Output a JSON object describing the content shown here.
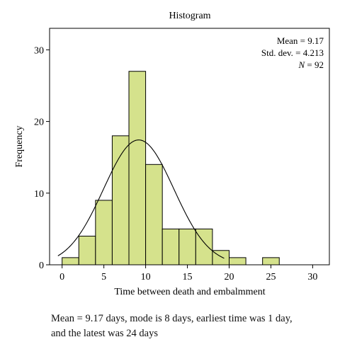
{
  "chart_data": {
    "type": "bar",
    "title": "Histogram",
    "xlabel": "Time between death and embalmment",
    "ylabel": "Frequency",
    "bin_width": 2,
    "bins": [
      {
        "start": 0,
        "end": 2,
        "count": 1
      },
      {
        "start": 2,
        "end": 4,
        "count": 4
      },
      {
        "start": 4,
        "end": 6,
        "count": 9
      },
      {
        "start": 6,
        "end": 8,
        "count": 18
      },
      {
        "start": 8,
        "end": 10,
        "count": 27
      },
      {
        "start": 10,
        "end": 12,
        "count": 14
      },
      {
        "start": 12,
        "end": 14,
        "count": 5
      },
      {
        "start": 14,
        "end": 16,
        "count": 5
      },
      {
        "start": 16,
        "end": 18,
        "count": 5
      },
      {
        "start": 18,
        "end": 20,
        "count": 2
      },
      {
        "start": 20,
        "end": 22,
        "count": 1
      },
      {
        "start": 22,
        "end": 24,
        "count": 0
      },
      {
        "start": 24,
        "end": 26,
        "count": 1
      }
    ],
    "xlim": [
      -1.5,
      32
    ],
    "ylim": [
      0,
      33
    ],
    "xticks": [
      0,
      5,
      10,
      15,
      20,
      25,
      30
    ],
    "yticks": [
      0,
      10,
      20,
      30
    ],
    "normal_curve": {
      "mean": 9.17,
      "sd": 4.213,
      "n": 92
    },
    "stats_box": {
      "mean_text": "Mean = 9.17",
      "sd_text": "Std. dev. = 4.213",
      "n_label": "N",
      "n_text": " = 92"
    },
    "colors": {
      "bar_fill": "#d5e28c",
      "bar_stroke": "#000000",
      "curve": "#000000"
    }
  },
  "caption": {
    "line1": "Mean = 9.17 days, mode is 8 days, earliest time was 1 day,",
    "line2": "and the latest was 24 days"
  }
}
